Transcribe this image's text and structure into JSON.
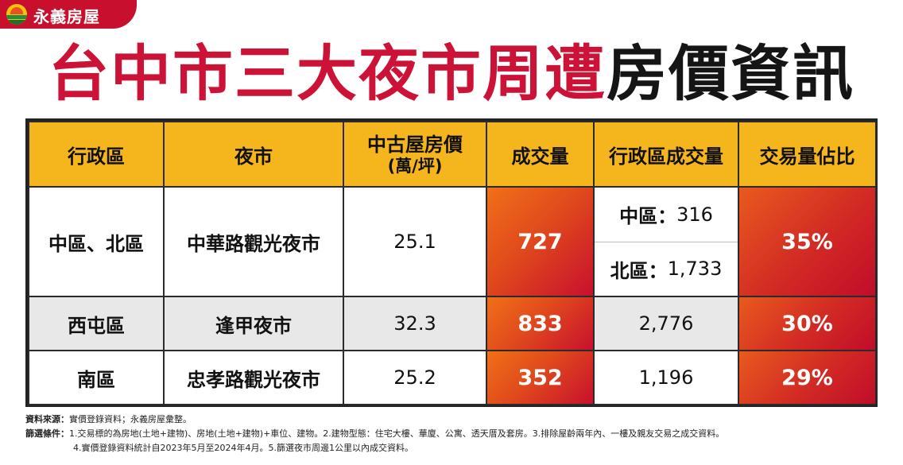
{
  "brand": {
    "name": "永義房屋",
    "logo_icon": "sun-over-waves-logo"
  },
  "title": {
    "red_part": "台中市三大夜市周遭",
    "black_part": "房價資訊"
  },
  "colors": {
    "brand_red": "#c8102e",
    "header_yellow": "#f5b51c",
    "gradient_start": "#f07018",
    "gradient_end": "#c8102e"
  },
  "table": {
    "headers": {
      "district": "行政區",
      "night_market": "夜市",
      "price_main": "中古屋房價",
      "price_unit": "(萬/坪)",
      "volume": "成交量",
      "district_volume": "行政區成交量",
      "share": "交易量佔比"
    },
    "rows": [
      {
        "district": "中區、北區",
        "night_market": "中華路觀光夜市",
        "price": "25.1",
        "volume": "727",
        "district_volume_a_label": "中區：",
        "district_volume_a_value": "316",
        "district_volume_b_label": "北區：",
        "district_volume_b_value": "1,733",
        "share": "35%"
      },
      {
        "district": "西屯區",
        "night_market": "逢甲夜市",
        "price": "32.3",
        "volume": "833",
        "district_volume": "2,776",
        "share": "30%"
      },
      {
        "district": "南區",
        "night_market": "忠孝路觀光夜市",
        "price": "25.2",
        "volume": "352",
        "district_volume": "1,196",
        "share": "29%"
      }
    ]
  },
  "notes": {
    "source_label": "資料來源：",
    "source_text": "實價登錄資料；永義房屋彙整。",
    "criteria_label": "篩選條件：",
    "criteria_line1": "1.交易標的為房地(土地+建物)、房地(土地+建物)+車位、建物。2.建物型態：住宅大樓、華廈、公寓、透天厝及套房。3.排除屋齡兩年內、一樓及親友交易之成交資料。",
    "criteria_line2": "4.實價登錄資料統計自2023年5月至2024年4月。5.篩選夜市周邊1公里以內成交資料。"
  }
}
